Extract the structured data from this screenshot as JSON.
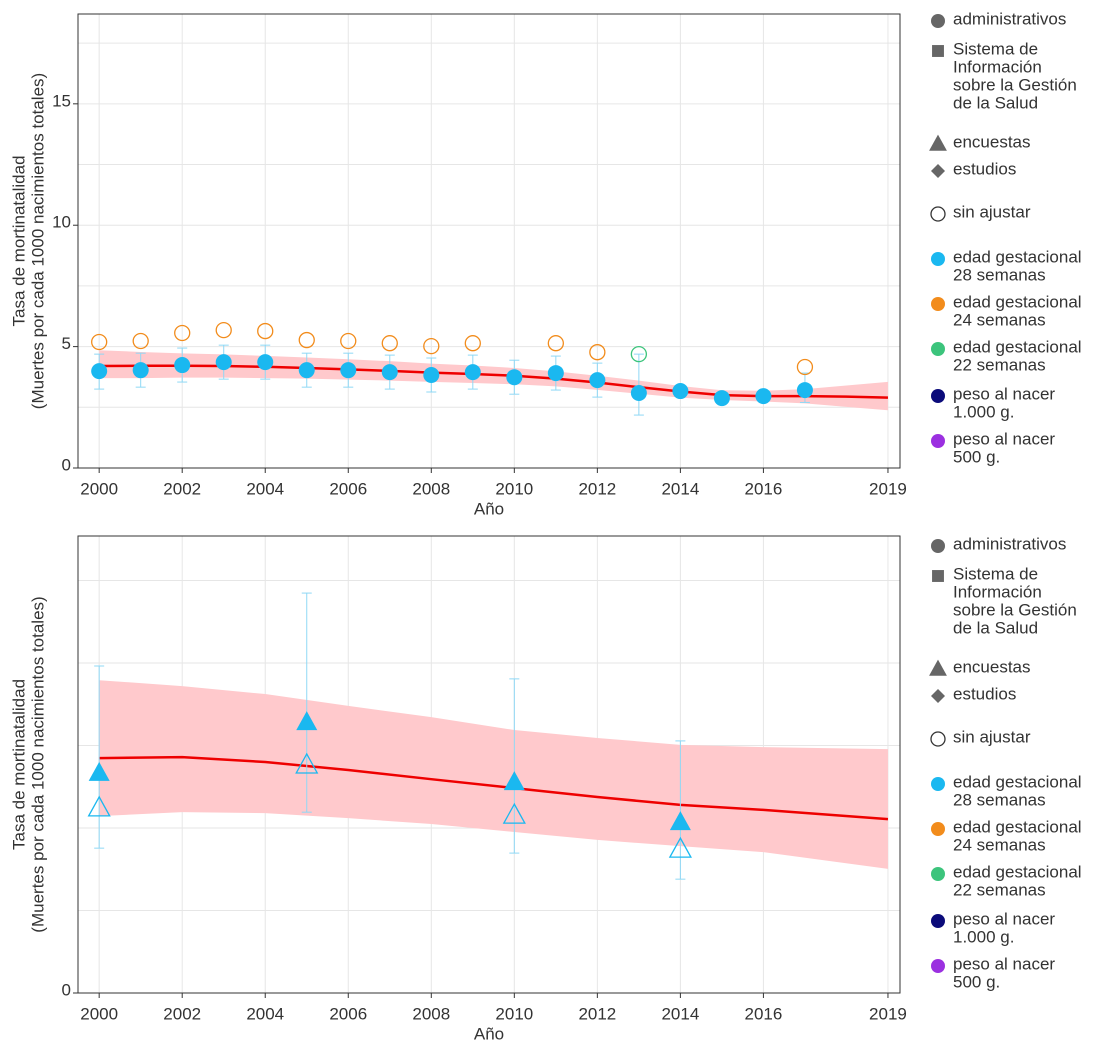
{
  "chart_data": [
    {
      "type": "scatter",
      "xlabel": "Año",
      "ylabel": [
        "Tasa de mortinatalidad",
        "(Muertes por cada 1000 nacimientos totales)"
      ],
      "xlim": [
        1999.49,
        2019.29
      ],
      "ylim": [
        0,
        18.7
      ],
      "xticks": [
        2000,
        2002,
        2004,
        2006,
        2008,
        2010,
        2012,
        2014,
        2016,
        2019
      ],
      "yticks": [
        0,
        5,
        10,
        15
      ],
      "ygrid": [
        2.5,
        5,
        7.5,
        10,
        12.5,
        15,
        17.5
      ],
      "estimate": {
        "color": "#ee0000",
        "band_color": "#ffc9cc",
        "x": [
          2000,
          2001,
          2002,
          2003,
          2004,
          2005,
          2006,
          2007,
          2008,
          2009,
          2010,
          2011,
          2012,
          2013,
          2014,
          2015,
          2016,
          2017,
          2018,
          2019
        ],
        "values": [
          4.2,
          4.21,
          4.21,
          4.2,
          4.17,
          4.12,
          4.06,
          4.0,
          3.93,
          3.87,
          3.8,
          3.68,
          3.52,
          3.33,
          3.15,
          3.0,
          2.96,
          2.96,
          2.94,
          2.9
        ],
        "upper": [
          4.85,
          4.78,
          4.72,
          4.68,
          4.62,
          4.55,
          4.48,
          4.4,
          4.3,
          4.22,
          4.12,
          3.98,
          3.8,
          3.6,
          3.38,
          3.2,
          3.18,
          3.25,
          3.4,
          3.55
        ],
        "lower": [
          3.7,
          3.7,
          3.72,
          3.72,
          3.7,
          3.68,
          3.64,
          3.6,
          3.55,
          3.5,
          3.45,
          3.36,
          3.22,
          3.06,
          2.9,
          2.8,
          2.74,
          2.66,
          2.52,
          2.38
        ]
      },
      "series": [
        {
          "marker": "circle",
          "filled": true,
          "color": "#1ab8f0",
          "error_color": "#8fd8f5",
          "x": [
            2000,
            2001,
            2002,
            2003,
            2004,
            2005,
            2006,
            2007,
            2008,
            2009,
            2010,
            2011,
            2012,
            2013,
            2014,
            2015,
            2016,
            2017
          ],
          "values": [
            3.99,
            4.03,
            4.24,
            4.36,
            4.36,
            4.03,
            4.03,
            3.95,
            3.83,
            3.95,
            3.74,
            3.91,
            3.62,
            3.09,
            3.17,
            2.88,
            2.96,
            3.21
          ],
          "lower": [
            3.25,
            3.33,
            3.54,
            3.66,
            3.66,
            3.33,
            3.33,
            3.25,
            3.13,
            3.25,
            3.04,
            3.21,
            2.92,
            2.18,
            2.97,
            2.68,
            2.76,
            2.7
          ],
          "upper": [
            4.69,
            4.73,
            4.94,
            5.06,
            5.06,
            4.73,
            4.73,
            4.65,
            4.53,
            4.65,
            4.44,
            4.61,
            4.32,
            4.69,
            3.37,
            3.08,
            3.16,
            3.91
          ]
        },
        {
          "marker": "circle",
          "filled": false,
          "color": "#f28c1c",
          "x": [
            2000,
            2001,
            2002,
            2003,
            2004,
            2005,
            2006,
            2007,
            2008,
            2009,
            2011,
            2012,
            2017
          ],
          "values": [
            5.19,
            5.23,
            5.56,
            5.68,
            5.64,
            5.27,
            5.23,
            5.14,
            5.02,
            5.14,
            5.14,
            4.77,
            4.16
          ]
        },
        {
          "marker": "circle",
          "filled": false,
          "color": "#3cc47c",
          "x": [
            2013
          ],
          "values": [
            4.69
          ]
        }
      ],
      "legend": [
        {
          "label": [
            "administrativos"
          ],
          "shape": "circle",
          "filled": true,
          "color": "#666666"
        },
        {
          "label": [
            "Sistema de",
            "Información",
            "sobre la Gestión",
            "de la Salud"
          ],
          "shape": "square",
          "filled": true,
          "color": "#666666"
        },
        {
          "label": [
            "encuestas"
          ],
          "shape": "triangle",
          "filled": true,
          "color": "#666666"
        },
        {
          "label": [
            "estudios"
          ],
          "shape": "diamond",
          "filled": true,
          "color": "#666666"
        },
        {
          "label": [
            "sin ajustar"
          ],
          "shape": "circle",
          "filled": false,
          "color": "#333333"
        },
        {
          "label": [
            "edad gestacional",
            "28 semanas"
          ],
          "shape": "circle",
          "filled": true,
          "color": "#1ab8f0"
        },
        {
          "label": [
            "edad gestacional",
            "24 semanas"
          ],
          "shape": "circle",
          "filled": true,
          "color": "#f28c1c"
        },
        {
          "label": [
            "edad gestacional",
            "22 semanas"
          ],
          "shape": "circle",
          "filled": true,
          "color": "#3cc47c"
        },
        {
          "label": [
            "peso al nacer",
            "1.000 g."
          ],
          "shape": "circle",
          "filled": true,
          "color": "#0b0b7a"
        },
        {
          "label": [
            "peso al nacer",
            "500 g."
          ],
          "shape": "circle",
          "filled": true,
          "color": "#9b30e0"
        }
      ]
    },
    {
      "type": "scatter",
      "xlabel": "Año",
      "ylabel": [
        "Tasa de mortinatalidad",
        "(Muertes por cada 1000 nacimientos totales)"
      ],
      "xlim": [
        1999.49,
        2019.29
      ],
      "ylim": [
        0,
        13.85
      ],
      "xticks": [
        2000,
        2002,
        2004,
        2006,
        2008,
        2010,
        2012,
        2014,
        2016,
        2019
      ],
      "yticks": [
        0
      ],
      "ygrid": [
        2.5,
        5,
        7.5,
        10,
        12.5
      ],
      "estimate": {
        "color": "#ee0000",
        "band_color": "#ffc9cc",
        "x": [
          2000,
          2002,
          2004,
          2006,
          2008,
          2010,
          2012,
          2014,
          2016,
          2019
        ],
        "values": [
          7.12,
          7.15,
          7.0,
          6.76,
          6.48,
          6.21,
          5.94,
          5.7,
          5.55,
          5.27
        ],
        "upper": [
          9.48,
          9.3,
          9.06,
          8.7,
          8.36,
          7.97,
          7.73,
          7.52,
          7.45,
          7.39
        ],
        "lower": [
          5.36,
          5.48,
          5.45,
          5.3,
          5.12,
          4.88,
          4.64,
          4.45,
          4.27,
          3.76
        ]
      },
      "series": [
        {
          "marker": "triangle",
          "filled": false,
          "color": "#1ab8f0",
          "error_color": "#8fd8f5",
          "x": [
            2000,
            2005,
            2010,
            2014
          ],
          "values": [
            5.61,
            6.91,
            5.39,
            4.36
          ],
          "lower": [
            4.39,
            5.48,
            4.24,
            3.45
          ],
          "upper": [
            9.91,
            12.12,
            9.52,
            7.64
          ]
        },
        {
          "marker": "triangle",
          "filled": true,
          "color": "#1ab8f0",
          "x": [
            2000,
            2005,
            2010,
            2014
          ],
          "values": [
            6.67,
            8.21,
            6.39,
            5.18
          ]
        }
      ],
      "legend": [
        {
          "label": [
            "administrativos"
          ],
          "shape": "circle",
          "filled": true,
          "color": "#666666"
        },
        {
          "label": [
            "Sistema de",
            "Información",
            "sobre la Gestión",
            "de la Salud"
          ],
          "shape": "square",
          "filled": true,
          "color": "#666666"
        },
        {
          "label": [
            "encuestas"
          ],
          "shape": "triangle",
          "filled": true,
          "color": "#666666"
        },
        {
          "label": [
            "estudios"
          ],
          "shape": "diamond",
          "filled": true,
          "color": "#666666"
        },
        {
          "label": [
            "sin ajustar"
          ],
          "shape": "circle",
          "filled": false,
          "color": "#333333"
        },
        {
          "label": [
            "edad gestacional",
            "28 semanas"
          ],
          "shape": "circle",
          "filled": true,
          "color": "#1ab8f0"
        },
        {
          "label": [
            "edad gestacional",
            "24 semanas"
          ],
          "shape": "circle",
          "filled": true,
          "color": "#f28c1c"
        },
        {
          "label": [
            "edad gestacional",
            "22 semanas"
          ],
          "shape": "circle",
          "filled": true,
          "color": "#3cc47c"
        },
        {
          "label": [
            "peso al nacer",
            "1.000 g."
          ],
          "shape": "circle",
          "filled": true,
          "color": "#0b0b7a"
        },
        {
          "label": [
            "peso al nacer",
            "500 g."
          ],
          "shape": "circle",
          "filled": true,
          "color": "#9b30e0"
        }
      ]
    }
  ]
}
